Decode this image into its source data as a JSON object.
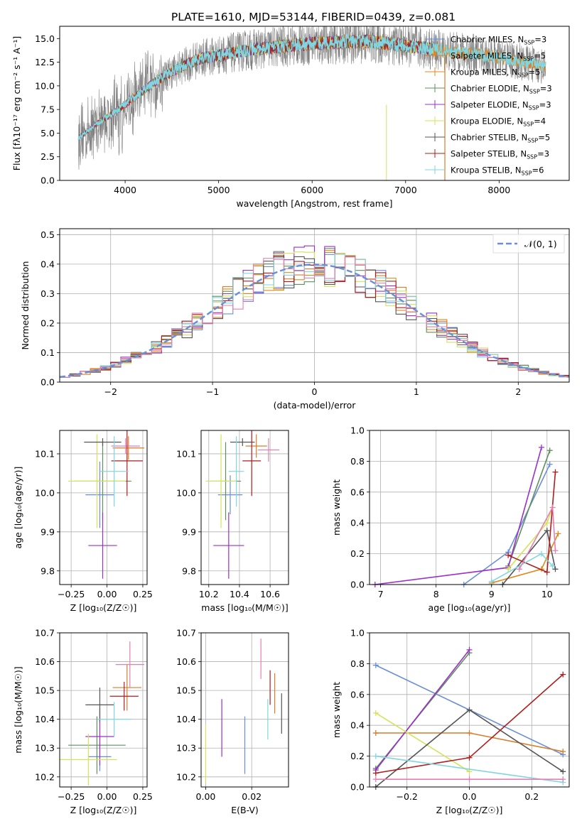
{
  "figure_title": "PLATE=1610, MJD=53144, FIBERID=0439, z=0.081",
  "models": [
    {
      "name": "Chabrier MILES",
      "nssp": "3",
      "color": "#6a8fd8"
    },
    {
      "name": "Salpeter MILES",
      "nssp": "5",
      "color": "#d97c2b"
    },
    {
      "name": "Kroupa MILES",
      "nssp": "5",
      "color": "#e08a1e"
    },
    {
      "name": "Chabrier ELODIE",
      "nssp": "3",
      "color": "#5f8f5f"
    },
    {
      "name": "Salpeter ELODIE",
      "nssp": "3",
      "color": "#9b30c8"
    },
    {
      "name": "Kroupa ELODIE",
      "nssp": "4",
      "color": "#d4e35a"
    },
    {
      "name": "Chabrier STELIB",
      "nssp": "5",
      "color": "#555555"
    },
    {
      "name": "Salpeter STELIB",
      "nssp": "3",
      "color": "#b01c1c"
    },
    {
      "name": "Kroupa STELIB",
      "nssp": "6",
      "color": "#7fd6e0"
    }
  ],
  "extra_colors": {
    "pink": "#e67fb0",
    "gray": "#808080"
  },
  "chart_data": [
    {
      "id": "spectrum",
      "type": "line",
      "xlabel": "wavelength [Angstrom, rest frame]",
      "ylabel": "Flux [fλ10⁻¹⁷ erg cm⁻² s⁻¹ A⁻¹]",
      "xlim": [
        3300,
        8750
      ],
      "ylim": [
        0,
        16.3
      ],
      "xticks": [
        4000,
        5000,
        6000,
        7000,
        8000
      ],
      "yticks": [
        0.0,
        2.5,
        5.0,
        7.5,
        10.0,
        12.5,
        15.0
      ],
      "xtick_labels": [
        "4000",
        "5000",
        "6000",
        "7000",
        "8000"
      ],
      "ytick_labels": [
        "0.0",
        "2.5",
        "5.0",
        "7.5",
        "10.0",
        "12.5",
        "15.0"
      ],
      "legend": "upper-right",
      "model_continuum": {
        "x": [
          3500,
          3700,
          3900,
          4100,
          4300,
          4500,
          4800,
          5100,
          5400,
          5700,
          6000,
          6300,
          6600,
          6900,
          7200,
          7500,
          7800,
          8100,
          8500
        ],
        "y": [
          4.5,
          6.0,
          7.3,
          8.8,
          10.3,
          11.5,
          12.9,
          13.4,
          13.9,
          14.2,
          14.5,
          14.6,
          14.7,
          14.4,
          14.0,
          13.6,
          13.3,
          12.8,
          12.0
        ]
      }
    },
    {
      "id": "residuals",
      "type": "histogram",
      "xlabel": "(data-model)/error",
      "ylabel": "Normed distribution",
      "xlim": [
        -2.5,
        2.5
      ],
      "ylim": [
        0,
        0.52
      ],
      "xticks": [
        -2,
        -1,
        0,
        1,
        2
      ],
      "yticks": [
        0.0,
        0.1,
        0.2,
        0.3,
        0.4,
        0.5
      ],
      "xtick_labels": [
        "−2",
        "−1",
        "0",
        "1",
        "2"
      ],
      "ytick_labels": [
        "0.0",
        "0.1",
        "0.2",
        "0.3",
        "0.4",
        "0.5"
      ],
      "reference": {
        "label": "𝒩(0, 1)",
        "mean": 0,
        "sigma": 1
      },
      "legend": "upper-right",
      "bin_width": 0.1
    },
    {
      "id": "age_vs_Z",
      "type": "errorbar",
      "xlabel": "Z [log₁₀(Z/Z☉)]",
      "ylabel": "age  [log₁₀(age/yr)]",
      "xlim": [
        -0.33,
        0.28
      ],
      "ylim": [
        9.765,
        10.16
      ],
      "xticks": [
        -0.25,
        0.0,
        0.25
      ],
      "yticks": [
        9.8,
        9.9,
        10.0,
        10.1
      ],
      "xtick_labels": [
        "−0.25",
        "0.00",
        "0.25"
      ],
      "ytick_labels": [
        "9.8",
        "9.9",
        "10.0",
        "10.1"
      ],
      "points": [
        {
          "x": -0.05,
          "xerr": 0.1,
          "y": 9.995,
          "yerr": 0.085,
          "color": "#6a8fd8"
        },
        {
          "x": 0.15,
          "xerr": 0.11,
          "y": 10.115,
          "yerr": 0.03,
          "color": "#d97c2b"
        },
        {
          "x": 0.13,
          "xerr": 0.1,
          "y": 10.12,
          "yerr": 0.02,
          "color": "#e67fb0"
        },
        {
          "x": -0.03,
          "xerr": 0.2,
          "y": 10.03,
          "yerr": 0.1,
          "color": "#5f8f5f"
        },
        {
          "x": -0.03,
          "xerr": 0.1,
          "y": 9.865,
          "yerr": 0.085,
          "color": "#9b30c8"
        },
        {
          "x": -0.07,
          "xerr": 0.2,
          "y": 10.03,
          "yerr": 0.12,
          "color": "#d4e35a"
        },
        {
          "x": -0.03,
          "xerr": 0.13,
          "y": 10.13,
          "yerr": 0.01,
          "color": "#555555"
        },
        {
          "x": 0.14,
          "xerr": 0.11,
          "y": 10.082,
          "yerr": 0.09,
          "color": "#b01c1c"
        },
        {
          "x": 0.05,
          "xerr": 0.1,
          "y": 10.055,
          "yerr": 0.09,
          "color": "#7fd6e0"
        }
      ]
    },
    {
      "id": "age_vs_mass",
      "type": "errorbar",
      "xlabel": "mass [log₁₀(M/M☉)]",
      "ylabel": "",
      "xlim": [
        10.15,
        10.72
      ],
      "ylim": [
        9.765,
        10.16
      ],
      "xticks": [
        10.2,
        10.4,
        10.6
      ],
      "yticks": [
        9.8,
        9.9,
        10.0,
        10.1
      ],
      "xtick_labels": [
        "10.2",
        "10.4",
        "10.6"
      ],
      "ytick_labels": [
        "9.8",
        "9.9",
        "10.0",
        "10.1"
      ],
      "points": [
        {
          "x": 10.34,
          "xerr": 0.08,
          "y": 9.995,
          "yerr": 0.05,
          "color": "#6a8fd8"
        },
        {
          "x": 10.51,
          "xerr": 0.07,
          "y": 10.12,
          "yerr": 0.03,
          "color": "#d97c2b"
        },
        {
          "x": 10.59,
          "xerr": 0.07,
          "y": 10.11,
          "yerr": 0.03,
          "color": "#e67fb0"
        },
        {
          "x": 10.31,
          "xerr": 0.1,
          "y": 10.03,
          "yerr": 0.1,
          "color": "#5f8f5f"
        },
        {
          "x": 10.33,
          "xerr": 0.1,
          "y": 9.865,
          "yerr": 0.085,
          "color": "#9b30c8"
        },
        {
          "x": 10.28,
          "xerr": 0.1,
          "y": 10.03,
          "yerr": 0.12,
          "color": "#d4e35a"
        },
        {
          "x": 10.42,
          "xerr": 0.08,
          "y": 10.13,
          "yerr": 0.01,
          "color": "#555555"
        },
        {
          "x": 10.48,
          "xerr": 0.06,
          "y": 10.082,
          "yerr": 0.09,
          "color": "#b01c1c"
        },
        {
          "x": 10.38,
          "xerr": 0.05,
          "y": 10.055,
          "yerr": 0.09,
          "color": "#7fd6e0"
        }
      ]
    },
    {
      "id": "weight_vs_age",
      "type": "line",
      "xlabel": "age  [log₁₀(age/yr)]",
      "ylabel": "mass weight",
      "xlim": [
        6.8,
        10.4
      ],
      "ylim": [
        0,
        1.0
      ],
      "xticks": [
        7,
        8,
        9,
        10
      ],
      "yticks": [
        0.0,
        0.2,
        0.4,
        0.6,
        0.8,
        1.0
      ],
      "xtick_labels": [
        "7",
        "8",
        "9",
        "10"
      ],
      "ytick_labels": [
        "0.0",
        "0.2",
        "0.4",
        "0.6",
        "0.8",
        "1.0"
      ],
      "series": [
        {
          "x": [
            8.5,
            9.3,
            10.05
          ],
          "y": [
            0.0,
            0.21,
            0.78
          ],
          "color": "#6a8fd8"
        },
        {
          "x": [
            9.0,
            9.9,
            10.2
          ],
          "y": [
            0.01,
            0.1,
            0.33
          ],
          "color": "#e08a1e"
        },
        {
          "x": [
            9.3,
            10.05
          ],
          "y": [
            0.12,
            0.87
          ],
          "color": "#5f8f5f"
        },
        {
          "x": [
            6.9,
            9.3,
            9.9
          ],
          "y": [
            0.0,
            0.11,
            0.89
          ],
          "color": "#9b30c8"
        },
        {
          "x": [
            9.3,
            10.0,
            10.1
          ],
          "y": [
            0.1,
            0.4,
            0.5
          ],
          "color": "#d4e35a"
        },
        {
          "x": [
            9.2,
            10.0,
            10.15
          ],
          "y": [
            0.0,
            0.35,
            0.1
          ],
          "color": "#555555"
        },
        {
          "x": [
            9.3,
            10.0,
            10.15
          ],
          "y": [
            0.19,
            0.08,
            0.73
          ],
          "color": "#b01c1c"
        },
        {
          "x": [
            9.0,
            9.9,
            10.1
          ],
          "y": [
            0.02,
            0.2,
            0.12
          ],
          "color": "#7fd6e0"
        },
        {
          "x": [
            9.5,
            10.1,
            10.15
          ],
          "y": [
            0.1,
            0.5,
            0.22
          ],
          "color": "#e67fb0"
        }
      ]
    },
    {
      "id": "mass_vs_Z",
      "type": "errorbar",
      "xlabel": "Z [log₁₀(Z/Z☉)]",
      "ylabel": "mass [log₁₀(M/M☉)]",
      "xlim": [
        -0.33,
        0.28
      ],
      "ylim": [
        10.165,
        10.7
      ],
      "xticks": [
        -0.25,
        0.0,
        0.25
      ],
      "yticks": [
        10.2,
        10.3,
        10.4,
        10.5,
        10.6,
        10.7
      ],
      "xtick_labels": [
        "−0.25",
        "0.00",
        "0.25"
      ],
      "ytick_labels": [
        "10.2",
        "10.3",
        "10.4",
        "10.5",
        "10.6",
        "10.7"
      ],
      "points": [
        {
          "x": -0.05,
          "xerr": 0.08,
          "y": 10.27,
          "yerr": 0.05,
          "color": "#6a8fd8"
        },
        {
          "x": 0.14,
          "xerr": 0.1,
          "y": 10.51,
          "yerr": 0.08,
          "color": "#d97c2b"
        },
        {
          "x": 0.16,
          "xerr": 0.1,
          "y": 10.59,
          "yerr": 0.08,
          "color": "#e67fb0"
        },
        {
          "x": -0.07,
          "xerr": 0.2,
          "y": 10.31,
          "yerr": 0.1,
          "color": "#5f8f5f"
        },
        {
          "x": -0.05,
          "xerr": 0.1,
          "y": 10.34,
          "yerr": 0.1,
          "color": "#9b30c8"
        },
        {
          "x": -0.13,
          "xerr": 0.2,
          "y": 10.26,
          "yerr": 0.09,
          "color": "#d4e35a"
        },
        {
          "x": -0.05,
          "xerr": 0.1,
          "y": 10.45,
          "yerr": 0.06,
          "color": "#555555"
        },
        {
          "x": 0.12,
          "xerr": 0.1,
          "y": 10.48,
          "yerr": 0.05,
          "color": "#b01c1c"
        },
        {
          "x": 0.05,
          "xerr": 0.12,
          "y": 10.4,
          "yerr": 0.06,
          "color": "#7fd6e0"
        }
      ]
    },
    {
      "id": "mass_vs_EBV",
      "type": "errorbar",
      "xlabel": "E(B-V)",
      "ylabel": "",
      "xlim": [
        -0.002,
        0.036
      ],
      "ylim": [
        10.165,
        10.7
      ],
      "xticks": [
        0.0,
        0.02
      ],
      "yticks": [
        10.2,
        10.3,
        10.4,
        10.5,
        10.6,
        10.7
      ],
      "xtick_labels": [
        "0.00",
        "0.02"
      ],
      "ytick_labels": [
        "10.2",
        "10.3",
        "10.4",
        "10.5",
        "10.6",
        "10.7"
      ],
      "points": [
        {
          "x": 0.0,
          "y": 10.28,
          "yerr": 0.1,
          "color": "#d4e35a"
        },
        {
          "x": 0.007,
          "y": 10.37,
          "yerr": 0.1,
          "color": "#9b30c8"
        },
        {
          "x": 0.017,
          "y": 10.31,
          "yerr": 0.1,
          "color": "#6a8fd8"
        },
        {
          "x": 0.024,
          "y": 10.61,
          "yerr": 0.07,
          "color": "#e67fb0"
        },
        {
          "x": 0.027,
          "y": 10.4,
          "yerr": 0.07,
          "color": "#7fd6e0"
        },
        {
          "x": 0.028,
          "y": 10.51,
          "yerr": 0.06,
          "color": "#b01c1c"
        },
        {
          "x": 0.03,
          "y": 10.49,
          "yerr": 0.07,
          "color": "#d97c2b"
        },
        {
          "x": 0.033,
          "y": 10.42,
          "yerr": 0.07,
          "color": "#555555"
        }
      ]
    },
    {
      "id": "weight_vs_Z",
      "type": "line",
      "xlabel": "Z [log₁₀(Z/Z☉)]",
      "ylabel": "mass weight",
      "xlim": [
        -0.32,
        0.32
      ],
      "ylim": [
        0,
        1.0
      ],
      "xticks": [
        -0.2,
        0.0,
        0.2
      ],
      "yticks": [
        0.0,
        0.2,
        0.4,
        0.6,
        0.8,
        1.0
      ],
      "xtick_labels": [
        "−0.2",
        "0.0",
        "0.2"
      ],
      "ytick_labels": [
        "0.0",
        "0.2",
        "0.4",
        "0.6",
        "0.8",
        "1.0"
      ],
      "series": [
        {
          "x": [
            -0.3,
            0.3
          ],
          "y": [
            0.79,
            0.21
          ],
          "color": "#6a8fd8"
        },
        {
          "x": [
            -0.3,
            0.0,
            0.3
          ],
          "y": [
            0.35,
            0.35,
            0.23
          ],
          "color": "#d97c2b"
        },
        {
          "x": [
            -0.3,
            0.0
          ],
          "y": [
            0.12,
            0.87
          ],
          "color": "#5f8f5f"
        },
        {
          "x": [
            -0.3,
            0.0
          ],
          "y": [
            0.11,
            0.89
          ],
          "color": "#9b30c8"
        },
        {
          "x": [
            -0.3,
            0.0
          ],
          "y": [
            0.48,
            0.1
          ],
          "color": "#d4e35a"
        },
        {
          "x": [
            -0.3,
            0.0,
            0.3
          ],
          "y": [
            0.0,
            0.5,
            0.1
          ],
          "color": "#555555"
        },
        {
          "x": [
            -0.3,
            0.0,
            0.3
          ],
          "y": [
            0.09,
            0.19,
            0.73
          ],
          "color": "#b01c1c"
        },
        {
          "x": [
            -0.3,
            0.3
          ],
          "y": [
            0.2,
            0.03
          ],
          "color": "#7fd6e0"
        },
        {
          "x": [
            -0.3,
            0.0,
            0.3
          ],
          "y": [
            0.05,
            0.05,
            0.05
          ],
          "color": "#e67fb0"
        }
      ]
    }
  ]
}
